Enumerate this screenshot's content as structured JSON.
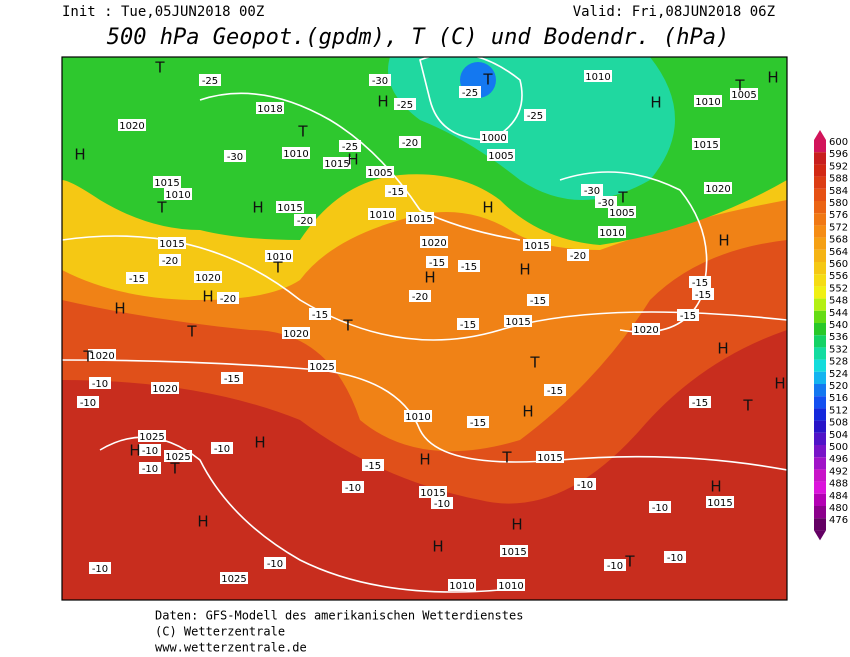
{
  "header": {
    "init": "Init : Tue,05JUN2018 00Z",
    "valid": "Valid: Fri,08JUN2018 06Z",
    "title": "500 hPa Geopot.(gpdm), T (C) und Bodendr. (hPa)"
  },
  "colorbar": {
    "values": [
      600,
      596,
      592,
      588,
      584,
      580,
      576,
      572,
      568,
      564,
      560,
      556,
      552,
      548,
      544,
      540,
      536,
      532,
      528,
      524,
      520,
      516,
      512,
      508,
      504,
      500,
      496,
      492,
      488,
      484,
      480,
      476
    ],
    "colors": [
      "#d2145a",
      "#c81e1e",
      "#d22814",
      "#dc3c14",
      "#e65014",
      "#eb6414",
      "#f07814",
      "#f58c14",
      "#f5a014",
      "#f5b414",
      "#f5c814",
      "#f5dc14",
      "#f0f014",
      "#b4f014",
      "#64dc14",
      "#28c828",
      "#14d264",
      "#14dca0",
      "#14dcdc",
      "#14b4f0",
      "#1478f0",
      "#1450f0",
      "#1428dc",
      "#2814c8",
      "#5014c8",
      "#7814c8",
      "#a014c8",
      "#c814c8",
      "#dc14dc",
      "#b400b4",
      "#8c008c",
      "#640064"
    ]
  },
  "map": {
    "isobar_labels": [
      "1010",
      "1010",
      "1005",
      "1018",
      "1020",
      "1010",
      "1015",
      "1005",
      "1015",
      "1010",
      "1015",
      "1010",
      "1015",
      "1000",
      "1005",
      "1015",
      "1020",
      "1005",
      "1010",
      "1015",
      "1015",
      "1010",
      "1020",
      "1020",
      "1020",
      "1015",
      "1020",
      "1025",
      "1020",
      "1020",
      "1010",
      "1025",
      "1025",
      "1015",
      "1015",
      "1015",
      "1015",
      "1025",
      "1010",
      "1010"
    ],
    "pressure_centers": [
      "H",
      "H",
      "H",
      "H",
      "H",
      "H",
      "H",
      "H",
      "H",
      "H",
      "H",
      "H",
      "H",
      "H",
      "H",
      "H",
      "H",
      "H",
      "H",
      "H",
      "H",
      "H",
      "T",
      "T",
      "T",
      "T",
      "T",
      "T",
      "T",
      "T",
      "T",
      "T",
      "T",
      "T",
      "T",
      "T",
      "T"
    ],
    "temperature_labels": [
      "-25",
      "-30",
      "-25",
      "-25",
      "-25",
      "-25",
      "-30",
      "-20",
      "-30",
      "-30",
      "-20",
      "-15",
      "-20",
      "-15",
      "-20",
      "-15",
      "-15",
      "-20",
      "-15",
      "-20",
      "-15",
      "-15",
      "-15",
      "-15",
      "-15",
      "-15",
      "-15",
      "-10",
      "-10",
      "-15",
      "-15",
      "-10",
      "-10",
      "-10",
      "-15",
      "-10",
      "-10",
      "-10",
      "-10",
      "-10",
      "-10",
      "-10",
      "-10"
    ]
  },
  "footer": {
    "source": "Daten: GFS-Modell des amerikanischen Wetterdienstes",
    "copyright": "(C) Wetterzentrale",
    "url": "www.wetterzentrale.de"
  }
}
